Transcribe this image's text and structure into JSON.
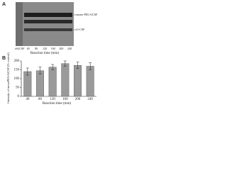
{
  "panel_a": {
    "label": "A",
    "lanes": [
      "rhGCSF",
      "40",
      "80",
      "120",
      "160",
      "200",
      "240"
    ],
    "x_label": "Reaction time (min)",
    "bands": [
      "mono-PEG-GCSF",
      "G-CSF"
    ]
  },
  "chart_data": {
    "type": "bar",
    "panel_label": "B",
    "x_label": "Reaction time (min)",
    "y_label": "Intensity of monoPEG-GCSF (% control)",
    "categories": [
      "40",
      "80",
      "120",
      "160",
      "200",
      "240"
    ],
    "values": [
      140,
      145,
      165,
      185,
      175,
      170
    ],
    "errors": [
      20,
      20,
      15,
      15,
      18,
      20
    ],
    "color": "#9a9a9a",
    "ylim": [
      0,
      200
    ],
    "yticks": [
      0,
      50,
      100,
      150,
      200
    ]
  }
}
